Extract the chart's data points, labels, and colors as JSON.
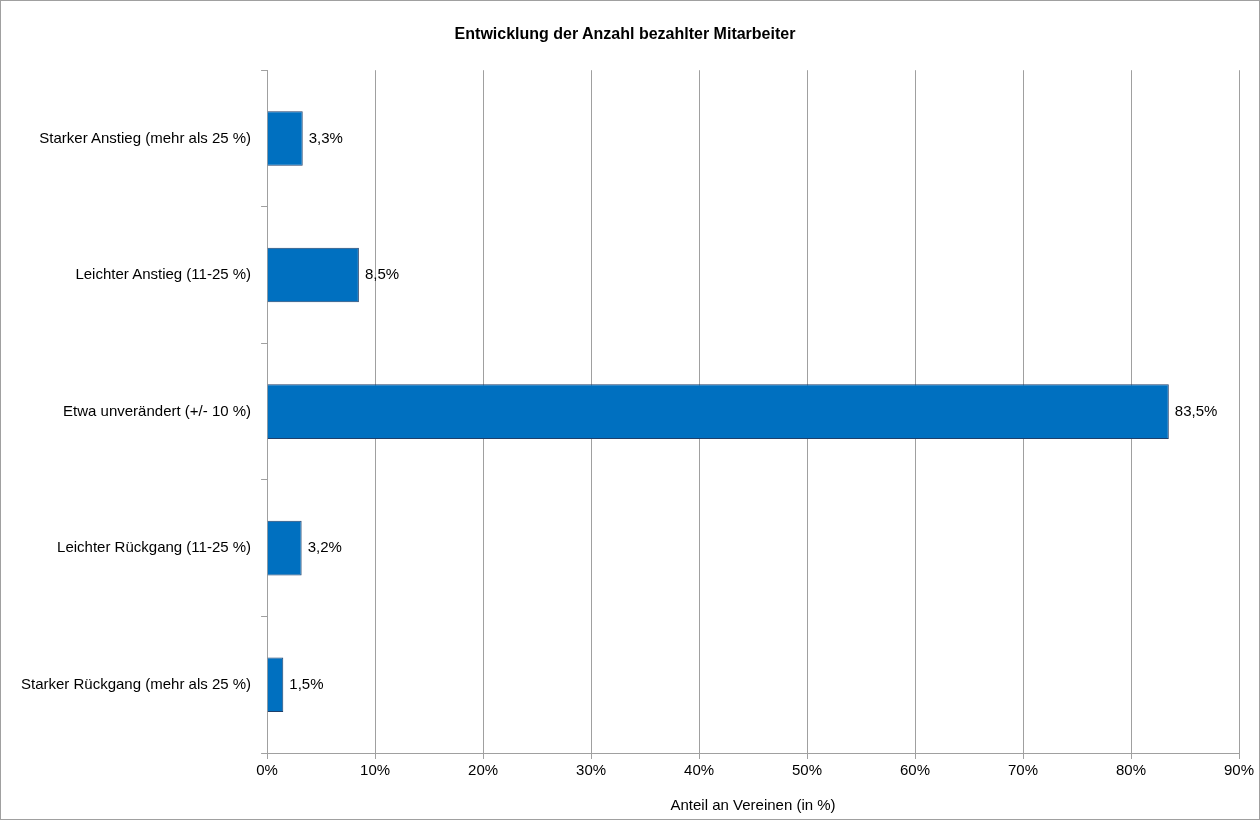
{
  "chart_data": {
    "type": "bar",
    "orientation": "horizontal",
    "title": "Entwicklung der Anzahl bezahlter Mitarbeiter",
    "xlabel": "Anteil an Vereinen (in %)",
    "categories": [
      "Starker Anstieg (mehr als 25 %)",
      "Leichter Anstieg (11-25 %)",
      "Etwa unverändert (+/- 10 %)",
      "Leichter Rückgang (11-25 %)",
      "Starker Rückgang (mehr als 25 %)"
    ],
    "values": [
      3.3,
      8.5,
      83.5,
      3.2,
      1.5
    ],
    "value_labels": [
      "3,3%",
      "8,5%",
      "83,5%",
      "3,2%",
      "1,5%"
    ],
    "color": "#0070c0",
    "xlim": [
      0,
      90
    ],
    "xticks": [
      {
        "value": 0,
        "label": "0%"
      },
      {
        "value": 10,
        "label": "10%"
      },
      {
        "value": 20,
        "label": "20%"
      },
      {
        "value": 30,
        "label": "30%"
      },
      {
        "value": 40,
        "label": "40%"
      },
      {
        "value": 50,
        "label": "50%"
      },
      {
        "value": 60,
        "label": "60%"
      },
      {
        "value": 70,
        "label": "70%"
      },
      {
        "value": 80,
        "label": "80%"
      },
      {
        "value": 90,
        "label": "90%"
      }
    ],
    "grid": "x",
    "legend": false
  }
}
